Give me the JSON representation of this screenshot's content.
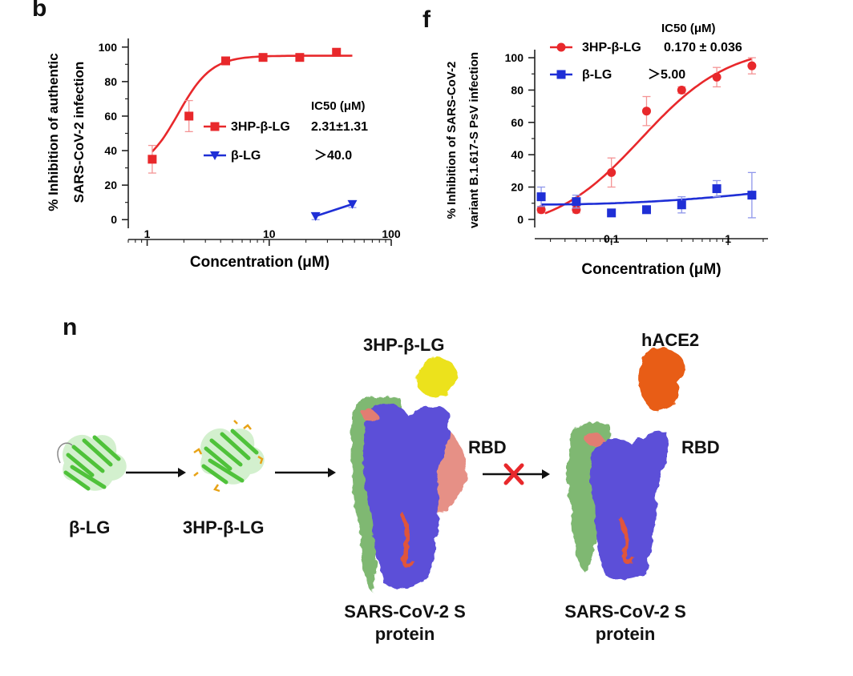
{
  "panels": {
    "b": "b",
    "f": "f",
    "n": "n"
  },
  "chart_data": [
    {
      "id": "chart-b",
      "type": "scatter",
      "x_scale": "log",
      "xlabel": "Concentration (μM)",
      "ylabel_lines": [
        "% Inhibition of authentic",
        "SARS-CoV-2 infection"
      ],
      "xlim": [
        0.7,
        100
      ],
      "ylim": [
        -5,
        105
      ],
      "x_ticks": [
        1,
        10,
        100
      ],
      "x_tick_labels": [
        "1",
        "10",
        "100"
      ],
      "y_ticks": [
        0,
        20,
        40,
        60,
        80,
        100
      ],
      "y_tick_labels": [
        "0",
        "20",
        "40",
        "60",
        "80",
        "100"
      ],
      "legend_header": "IC50 (μM)",
      "series": [
        {
          "name": "3HP-β-LG",
          "ic50_text": "2.31±1.31",
          "color": "#e8282b",
          "marker": "square",
          "fit": {
            "bottom": 28,
            "top": 95,
            "ic50": 1.8,
            "hill": 3.2,
            "from": 1.1,
            "to": 48
          },
          "points": [
            {
              "x": 1.1,
              "y": 35,
              "err": 8
            },
            {
              "x": 2.2,
              "y": 60,
              "err": 9
            },
            {
              "x": 4.4,
              "y": 92,
              "err": 2
            },
            {
              "x": 8.9,
              "y": 94,
              "err": 1.5
            },
            {
              "x": 17.8,
              "y": 94,
              "err": 1.5
            },
            {
              "x": 35.6,
              "y": 97,
              "err": 1.5
            }
          ]
        },
        {
          "name": "β-LG",
          "ic50_text": "＞40.0",
          "color": "#1f2fd6",
          "marker": "triangle-down",
          "line_mode": "connect",
          "points": [
            {
              "x": 24,
              "y": 2,
              "err": 2
            },
            {
              "x": 48,
              "y": 9,
              "err": 2
            }
          ]
        }
      ]
    },
    {
      "id": "chart-f",
      "type": "scatter",
      "x_scale": "log",
      "xlabel": "Concentration (μM)",
      "ylabel_lines": [
        "% Inhibition of SARS-CoV-2",
        "variant B.1.617-S PsV infection"
      ],
      "xlim": [
        0.022,
        2.2
      ],
      "ylim": [
        -5,
        105
      ],
      "x_ticks": [
        0.1,
        1
      ],
      "x_tick_labels": [
        "0.1",
        "1"
      ],
      "y_ticks": [
        0,
        20,
        40,
        60,
        80,
        100
      ],
      "y_tick_labels": [
        "0",
        "20",
        "40",
        "60",
        "80",
        "100"
      ],
      "legend_header": "IC50 (μM)",
      "series": [
        {
          "name": "3HP-β-LG",
          "ic50_text": "0.170 ± 0.036",
          "color": "#e8282b",
          "marker": "circle",
          "fit": {
            "bottom": -8,
            "top": 108,
            "ic50": 0.18,
            "hill": 1.15,
            "from": 0.027,
            "to": 1.6
          },
          "points": [
            {
              "x": 0.025,
              "y": 6,
              "err": 2
            },
            {
              "x": 0.05,
              "y": 6,
              "err": 2
            },
            {
              "x": 0.1,
              "y": 29,
              "err": 9
            },
            {
              "x": 0.2,
              "y": 67,
              "err": 9
            },
            {
              "x": 0.4,
              "y": 80,
              "err": 2
            },
            {
              "x": 0.8,
              "y": 88,
              "err": 6
            },
            {
              "x": 1.6,
              "y": 95,
              "err": 5
            }
          ]
        },
        {
          "name": "β-LG",
          "ic50_text": "＞5.00",
          "color": "#1f2fd6",
          "marker": "square",
          "fit": {
            "poly": [
              9.2,
              6.8
            ],
            "from": 0.025,
            "to": 1.6
          },
          "points": [
            {
              "x": 0.025,
              "y": 14,
              "err": 6
            },
            {
              "x": 0.05,
              "y": 11,
              "err": 4
            },
            {
              "x": 0.1,
              "y": 4,
              "err": 1
            },
            {
              "x": 0.2,
              "y": 6,
              "err": 2
            },
            {
              "x": 0.4,
              "y": 9,
              "err": 5
            },
            {
              "x": 0.8,
              "y": 19,
              "err": 5
            },
            {
              "x": 1.6,
              "y": 15,
              "err": 14
            }
          ]
        }
      ]
    }
  ],
  "diagram": {
    "blg_label": "β-LG",
    "hp_label": "3HP-β-LG",
    "hp_top_label": "3HP-β-LG",
    "rbd_label": "RBD",
    "rbd_label_2": "RBD",
    "hace2_label": "hACE2",
    "spike_label_line1": "SARS-CoV-2 S",
    "spike_label_line2": "protein",
    "spike2_label_line1": "SARS-CoV-2 S",
    "spike2_label_line2": "protein",
    "colors": {
      "protein_green": "#4fc23a",
      "spike_blue": "#5b4fd8",
      "spike_green": "#7fb872",
      "spike_salmon": "#e27d72",
      "yellow": "#ece21a",
      "orange": "#e85d14",
      "block_x": "#e8282b"
    }
  }
}
